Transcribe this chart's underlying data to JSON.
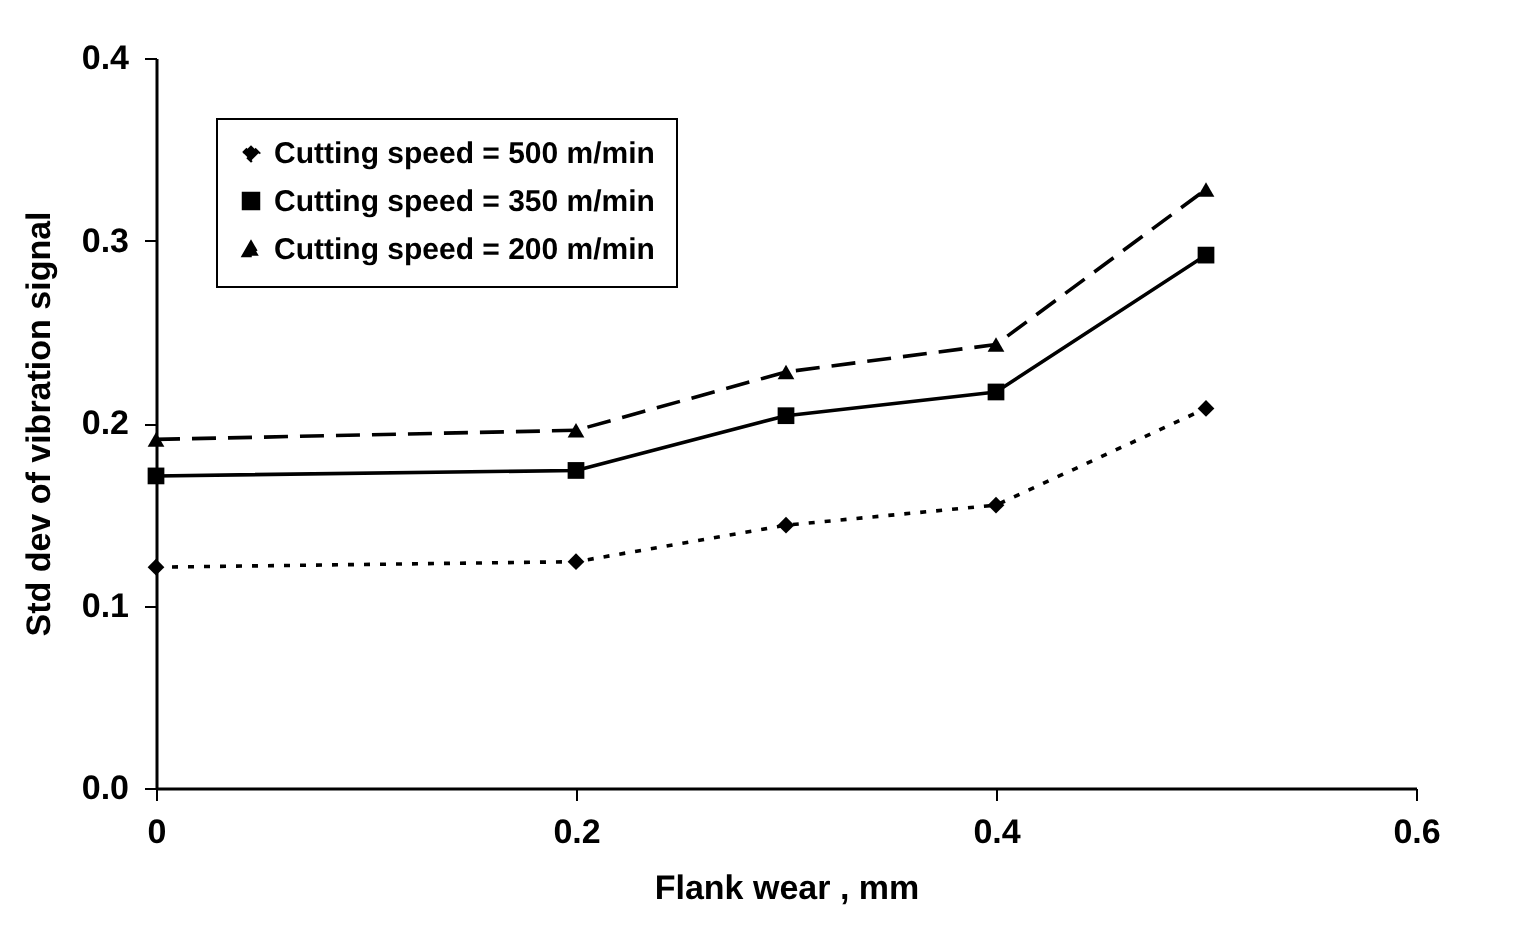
{
  "chart_data": {
    "type": "line",
    "xlabel": "Flank wear , mm",
    "ylabel": "Std dev of vibration signal",
    "x": [
      0,
      0.2,
      0.3,
      0.4,
      0.5
    ],
    "series": [
      {
        "name": "Cutting speed = 500 m/min",
        "color": "#000000",
        "marker": "diamond",
        "line_style": "dotted",
        "values": [
          0.121,
          0.124,
          0.144,
          0.155,
          0.208
        ]
      },
      {
        "name": "Cutting speed = 350 m/min",
        "color": "#000000",
        "marker": "square",
        "line_style": "solid",
        "values": [
          0.171,
          0.174,
          0.204,
          0.217,
          0.292
        ]
      },
      {
        "name": "Cutting speed = 200 m/min",
        "color": "#000000",
        "marker": "triangle",
        "line_style": "dashed",
        "values": [
          0.191,
          0.196,
          0.228,
          0.243,
          0.328
        ]
      }
    ],
    "xlim": [
      0,
      0.6
    ],
    "xticks": [
      0,
      0.2,
      0.4,
      0.6
    ],
    "ylim": [
      0,
      0.4
    ],
    "yticks": [
      {
        "value": 0,
        "label": "0.0"
      },
      0.1,
      0.2,
      0.3,
      0.4
    ],
    "grid": false,
    "legend": "top left"
  }
}
